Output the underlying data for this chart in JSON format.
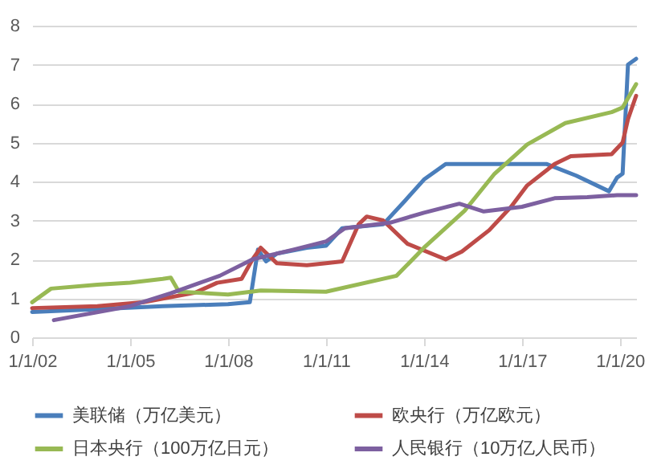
{
  "chart_data": {
    "type": "line",
    "xlim": [
      "2002-01-01",
      "2020-07-01"
    ],
    "xticks": [
      {
        "value": "2002-01-01",
        "label": "1/1/02"
      },
      {
        "value": "2005-01-01",
        "label": "1/1/05"
      },
      {
        "value": "2008-01-01",
        "label": "1/1/08"
      },
      {
        "value": "2011-01-01",
        "label": "1/1/11"
      },
      {
        "value": "2014-01-01",
        "label": "1/1/14"
      },
      {
        "value": "2017-01-01",
        "label": "1/1/17"
      },
      {
        "value": "2020-01-01",
        "label": "1/1/20"
      }
    ],
    "ylim": [
      0,
      8
    ],
    "yticks": [
      0,
      1,
      2,
      3,
      4,
      5,
      6,
      7,
      8
    ],
    "grid": "y",
    "legend": "bottom",
    "series": [
      {
        "name": "美联储（万亿美元）",
        "color": "#4a7ebb",
        "x": [
          "2002-01",
          "2004-01",
          "2006-01",
          "2008-01",
          "2008-09",
          "2008-12",
          "2009-03",
          "2009-07",
          "2010-06",
          "2011-01",
          "2011-07",
          "2012-10",
          "2013-06",
          "2014-01",
          "2014-09",
          "2016-01",
          "2017-10",
          "2018-09",
          "2019-09",
          "2019-12",
          "2020-02",
          "2020-04",
          "2020-07"
        ],
        "values": [
          0.65,
          0.72,
          0.8,
          0.85,
          0.9,
          2.25,
          1.95,
          2.15,
          2.3,
          2.35,
          2.8,
          2.9,
          3.5,
          4.05,
          4.45,
          4.45,
          4.45,
          4.15,
          3.75,
          4.1,
          4.2,
          7.0,
          7.15
        ]
      },
      {
        "name": "欧央行（万亿欧元）",
        "color": "#be4b48",
        "x": [
          "2002-01",
          "2004-01",
          "2005-06",
          "2007-01",
          "2007-09",
          "2008-06",
          "2008-10",
          "2009-01",
          "2009-07",
          "2010-06",
          "2011-01",
          "2011-07",
          "2012-01",
          "2012-04",
          "2012-10",
          "2013-07",
          "2014-09",
          "2015-03",
          "2016-01",
          "2016-09",
          "2017-03",
          "2018-01",
          "2018-07",
          "2019-10",
          "2020-02",
          "2020-04",
          "2020-07"
        ],
        "values": [
          0.75,
          0.8,
          0.9,
          1.15,
          1.4,
          1.5,
          2.0,
          2.3,
          1.9,
          1.85,
          1.9,
          1.95,
          2.9,
          3.1,
          3.0,
          2.4,
          2.0,
          2.2,
          2.75,
          3.35,
          3.9,
          4.45,
          4.65,
          4.7,
          5.0,
          5.6,
          6.2
        ]
      },
      {
        "name": "日本央行（100万亿日元）",
        "color": "#98b954",
        "x": [
          "2002-01",
          "2002-08",
          "2004-01",
          "2005-01",
          "2006-01",
          "2006-04",
          "2006-07",
          "2008-01",
          "2009-01",
          "2011-01",
          "2013-03",
          "2014-01",
          "2015-04",
          "2016-03",
          "2017-03",
          "2018-05",
          "2019-10",
          "2020-02",
          "2020-07"
        ],
        "values": [
          0.9,
          1.25,
          1.35,
          1.4,
          1.5,
          1.53,
          1.17,
          1.1,
          1.2,
          1.17,
          1.58,
          2.3,
          3.25,
          4.2,
          4.95,
          5.5,
          5.78,
          5.9,
          6.5
        ]
      },
      {
        "name": "人民银行（10万亿人民币）",
        "color": "#7d60a0",
        "x": [
          "2002-09",
          "2005-01",
          "2006-04",
          "2007-10",
          "2008-10",
          "2010-01",
          "2011-01",
          "2011-08",
          "2013-01",
          "2014-01",
          "2015-02",
          "2015-11",
          "2017-01",
          "2018-01",
          "2019-01",
          "2019-12",
          "2020-07"
        ],
        "values": [
          0.44,
          0.8,
          1.13,
          1.58,
          2.0,
          2.25,
          2.46,
          2.8,
          2.95,
          3.2,
          3.43,
          3.23,
          3.35,
          3.57,
          3.6,
          3.65,
          3.65
        ]
      }
    ]
  }
}
